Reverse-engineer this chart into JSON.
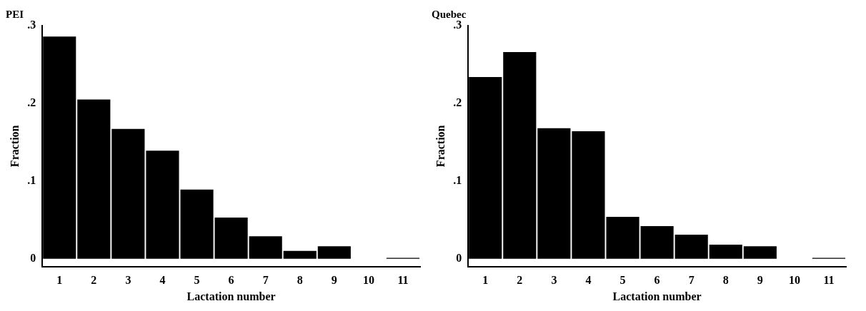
{
  "chart_data": [
    {
      "type": "bar",
      "title": "PEI",
      "xlabel": "Lactation number",
      "ylabel": "Fraction",
      "categories": [
        "1",
        "2",
        "3",
        "4",
        "5",
        "6",
        "7",
        "8",
        "9",
        "10",
        "11"
      ],
      "values": [
        0.286,
        0.205,
        0.167,
        0.139,
        0.089,
        0.053,
        0.029,
        0.01,
        0.016,
        0,
        0.001
      ],
      "color": "#000000",
      "ylim": [
        -0.01,
        0.3
      ],
      "yticks": [
        {
          "value": 0,
          "label": "0"
        },
        {
          "value": 0.1,
          "label": ".1"
        },
        {
          "value": 0.2,
          "label": ".2"
        },
        {
          "value": 0.3,
          "label": ".3"
        }
      ],
      "grid": false,
      "legend": false
    },
    {
      "type": "bar",
      "title": "Quebec",
      "xlabel": "Lactation number",
      "ylabel": "Fraction",
      "categories": [
        "1",
        "2",
        "3",
        "4",
        "5",
        "6",
        "7",
        "8",
        "9",
        "10",
        "11"
      ],
      "values": [
        0.234,
        0.266,
        0.168,
        0.164,
        0.054,
        0.042,
        0.031,
        0.018,
        0.016,
        0,
        0.001
      ],
      "color": "#000000",
      "ylim": [
        -0.01,
        0.3
      ],
      "yticks": [
        {
          "value": 0,
          "label": "0"
        },
        {
          "value": 0.1,
          "label": ".1"
        },
        {
          "value": 0.2,
          "label": ".2"
        },
        {
          "value": 0.3,
          "label": ".3"
        }
      ],
      "grid": false,
      "legend": false
    }
  ]
}
